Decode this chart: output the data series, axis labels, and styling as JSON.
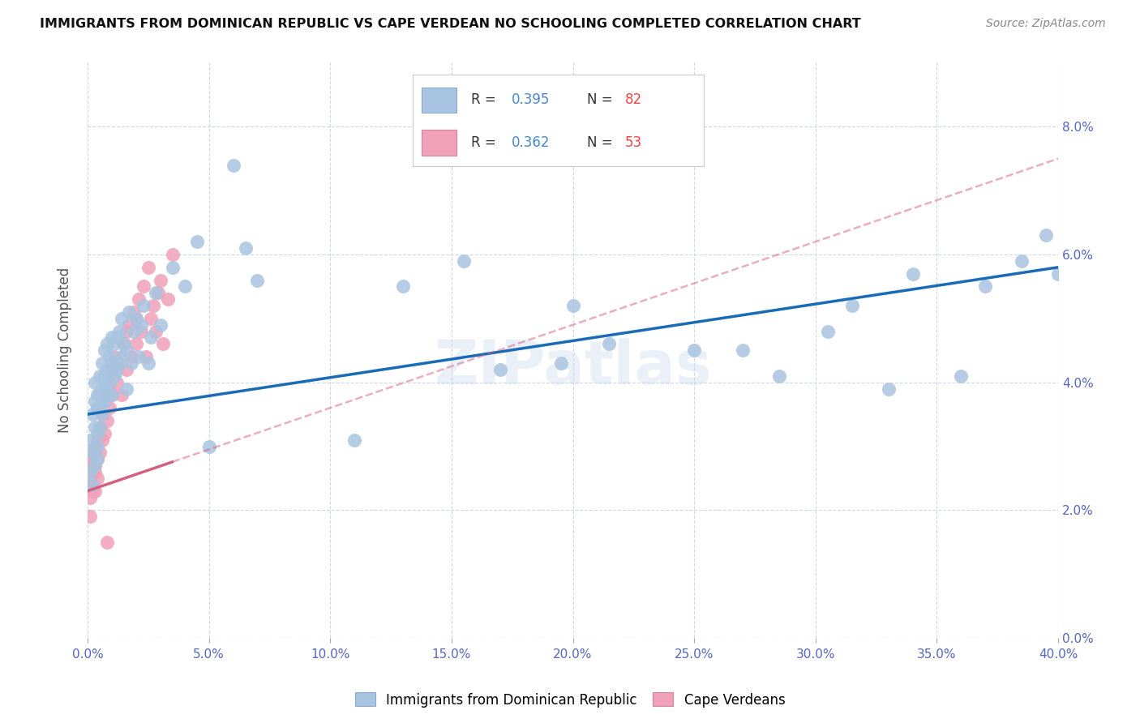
{
  "title": "IMMIGRANTS FROM DOMINICAN REPUBLIC VS CAPE VERDEAN NO SCHOOLING COMPLETED CORRELATION CHART",
  "source": "Source: ZipAtlas.com",
  "ylabel": "No Schooling Completed",
  "legend_blue_r": "0.395",
  "legend_blue_n": "82",
  "legend_pink_r": "0.362",
  "legend_pink_n": "53",
  "legend_label_blue": "Immigrants from Dominican Republic",
  "legend_label_pink": "Cape Verdeans",
  "blue_scatter_color": "#a8c4e0",
  "pink_scatter_color": "#f0a0b8",
  "blue_line_color": "#1a6bb5",
  "pink_line_color": "#d45f80",
  "background_color": "#ffffff",
  "grid_color": "#d0d8e8",
  "xlim": [
    0.0,
    0.4
  ],
  "ylim": [
    0.0,
    0.09
  ],
  "blue_x": [
    0.001,
    0.001,
    0.002,
    0.002,
    0.002,
    0.003,
    0.003,
    0.003,
    0.003,
    0.004,
    0.004,
    0.004,
    0.004,
    0.004,
    0.005,
    0.005,
    0.005,
    0.005,
    0.006,
    0.006,
    0.006,
    0.006,
    0.007,
    0.007,
    0.007,
    0.007,
    0.008,
    0.008,
    0.008,
    0.009,
    0.009,
    0.01,
    0.01,
    0.01,
    0.011,
    0.011,
    0.012,
    0.012,
    0.013,
    0.013,
    0.014,
    0.014,
    0.015,
    0.016,
    0.016,
    0.017,
    0.018,
    0.019,
    0.02,
    0.021,
    0.022,
    0.023,
    0.025,
    0.026,
    0.028,
    0.03,
    0.035,
    0.04,
    0.045,
    0.05,
    0.06,
    0.065,
    0.07,
    0.11,
    0.13,
    0.155,
    0.17,
    0.195,
    0.2,
    0.215,
    0.25,
    0.27,
    0.285,
    0.305,
    0.315,
    0.33,
    0.34,
    0.36,
    0.37,
    0.385,
    0.395,
    0.4
  ],
  "blue_y": [
    0.026,
    0.031,
    0.024,
    0.029,
    0.035,
    0.027,
    0.033,
    0.037,
    0.04,
    0.028,
    0.032,
    0.036,
    0.038,
    0.03,
    0.033,
    0.038,
    0.041,
    0.036,
    0.035,
    0.039,
    0.043,
    0.037,
    0.037,
    0.041,
    0.045,
    0.039,
    0.038,
    0.042,
    0.046,
    0.04,
    0.044,
    0.038,
    0.043,
    0.047,
    0.041,
    0.046,
    0.042,
    0.047,
    0.043,
    0.048,
    0.044,
    0.05,
    0.046,
    0.039,
    0.045,
    0.051,
    0.043,
    0.048,
    0.05,
    0.044,
    0.049,
    0.052,
    0.043,
    0.047,
    0.054,
    0.049,
    0.058,
    0.055,
    0.062,
    0.03,
    0.074,
    0.061,
    0.056,
    0.031,
    0.055,
    0.059,
    0.042,
    0.043,
    0.052,
    0.046,
    0.045,
    0.045,
    0.041,
    0.048,
    0.052,
    0.039,
    0.057,
    0.041,
    0.055,
    0.059,
    0.063,
    0.057
  ],
  "pink_x": [
    0.001,
    0.001,
    0.001,
    0.001,
    0.002,
    0.002,
    0.002,
    0.002,
    0.003,
    0.003,
    0.003,
    0.003,
    0.004,
    0.004,
    0.004,
    0.005,
    0.005,
    0.006,
    0.006,
    0.007,
    0.007,
    0.008,
    0.008,
    0.009,
    0.009,
    0.01,
    0.01,
    0.011,
    0.012,
    0.013,
    0.014,
    0.015,
    0.016,
    0.016,
    0.017,
    0.018,
    0.019,
    0.02,
    0.02,
    0.021,
    0.022,
    0.023,
    0.024,
    0.025,
    0.026,
    0.027,
    0.028,
    0.029,
    0.03,
    0.031,
    0.033,
    0.035,
    0.008
  ],
  "pink_y": [
    0.025,
    0.022,
    0.028,
    0.019,
    0.024,
    0.027,
    0.023,
    0.029,
    0.026,
    0.03,
    0.023,
    0.027,
    0.031,
    0.028,
    0.025,
    0.033,
    0.029,
    0.035,
    0.031,
    0.037,
    0.032,
    0.038,
    0.034,
    0.04,
    0.036,
    0.042,
    0.038,
    0.044,
    0.04,
    0.043,
    0.038,
    0.046,
    0.048,
    0.042,
    0.049,
    0.044,
    0.051,
    0.05,
    0.046,
    0.053,
    0.048,
    0.055,
    0.044,
    0.058,
    0.05,
    0.052,
    0.048,
    0.054,
    0.056,
    0.046,
    0.053,
    0.06,
    0.015
  ],
  "blue_line_x0": 0.0,
  "blue_line_y0": 0.035,
  "blue_line_x1": 0.4,
  "blue_line_y1": 0.058,
  "pink_line_x0": 0.0,
  "pink_line_y0": 0.023,
  "pink_line_x1": 0.4,
  "pink_line_y1": 0.075
}
